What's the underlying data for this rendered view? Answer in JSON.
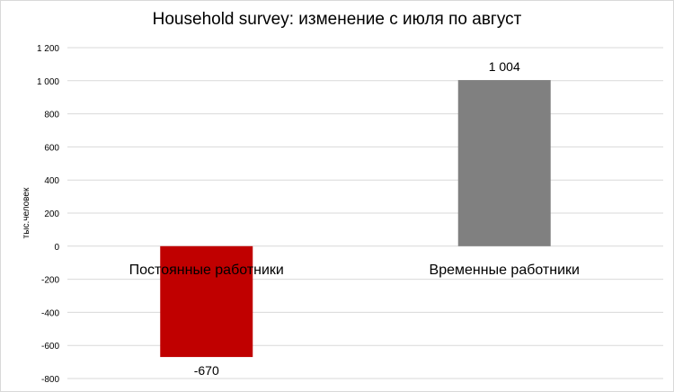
{
  "chart_data": {
    "type": "bar",
    "title": "Household survey: изменение  с июля по август",
    "xlabel": "",
    "ylabel": "тыс.человек",
    "categories": [
      "Постоянные работники",
      "Временные работники"
    ],
    "values": [
      -670,
      1004
    ],
    "data_labels": [
      "-670",
      "1 004"
    ],
    "colors": [
      "#c00000",
      "#808080"
    ],
    "ylim": [
      -800,
      1200
    ],
    "yticks": [
      -800,
      -600,
      -400,
      -200,
      0,
      200,
      400,
      600,
      800,
      1000,
      1200
    ],
    "ytick_labels": [
      "-800",
      "-600",
      "-400",
      "-200",
      "0",
      "200",
      "400",
      "600",
      "800",
      "1 000",
      "1 200"
    ],
    "grid": true,
    "legend": "none"
  }
}
